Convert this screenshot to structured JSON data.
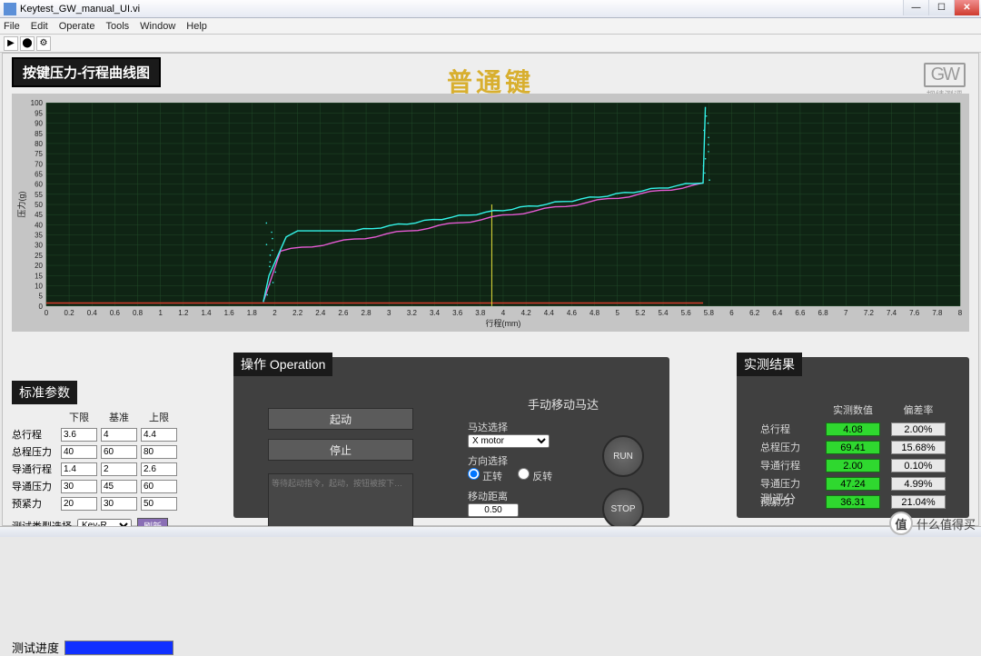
{
  "window": {
    "title": "Keytest_GW_manual_UI.vi"
  },
  "menu": {
    "items": [
      "File",
      "Edit",
      "Operate",
      "Tools",
      "Window",
      "Help"
    ]
  },
  "header": {
    "chart_title": "按键压力-行程曲线图",
    "center": "普通键",
    "logo_top": "GW",
    "logo_sub": "规纬测评"
  },
  "progress": {
    "label": "测试进度"
  },
  "std": {
    "title": "标准参数",
    "cols": [
      "下限",
      "基准",
      "上限"
    ],
    "rows": [
      {
        "label": "总行程",
        "lo": "3.6",
        "mid": "4",
        "hi": "4.4"
      },
      {
        "label": "总程压力",
        "lo": "40",
        "mid": "60",
        "hi": "80"
      },
      {
        "label": "导通行程",
        "lo": "1.4",
        "mid": "2",
        "hi": "2.6"
      },
      {
        "label": "导通压力",
        "lo": "30",
        "mid": "45",
        "hi": "60"
      },
      {
        "label": "预紧力",
        "lo": "20",
        "mid": "30",
        "hi": "50"
      }
    ],
    "type_label": "测试类型选择",
    "type_value": "Key-R",
    "type_btn": "刷新"
  },
  "op": {
    "title": "操作 Operation",
    "start": "起动",
    "stop": "停止",
    "log_hint": "等待起动指令，起动，按钮被按下…",
    "manual_title": "手动移动马达",
    "motor_label": "马达选择",
    "motor_value": "X motor",
    "dir_label": "方向选择",
    "dir_fwd": "正转",
    "dir_rev": "反转",
    "dist_label": "移动距离",
    "dist_value": "0.50",
    "run": "RUN",
    "stop_btn": "STOP"
  },
  "res": {
    "title": "实测结果",
    "col1": "实测数值",
    "col2": "偏差率",
    "rows": [
      {
        "label": "总行程",
        "v": "4.08",
        "d": "2.00%"
      },
      {
        "label": "总程压力",
        "v": "69.41",
        "d": "15.68%"
      },
      {
        "label": "导通行程",
        "v": "2.00",
        "d": "0.10%"
      },
      {
        "label": "导通压力",
        "v": "47.24",
        "d": "4.99%"
      },
      {
        "label": "预紧力",
        "v": "36.31",
        "d": "21.04%"
      }
    ],
    "score_label": "测评分"
  },
  "watermark": {
    "brand": "什么值得买",
    "icon": "值"
  },
  "chart": {
    "bg": "#0f2414",
    "grid": "#214a28",
    "xlabel": "行程(mm)",
    "ylabel": "压力(g)",
    "xlim": [
      0,
      8
    ],
    "xtick": 0.2,
    "ylim": [
      0,
      100
    ],
    "ytick": 5,
    "marker_x": 3.9,
    "series": {
      "press": {
        "color": "#34f3e8",
        "x0": 1.9,
        "y0": 2,
        "plateau_x": 2.2,
        "plateau_y": 37,
        "end_x": 5.75,
        "end_y": 61,
        "wall_y": 98
      },
      "release": {
        "color": "#e85bd6",
        "x0": 1.9,
        "y0": 2,
        "x1": 2.05,
        "y1": 27,
        "end_x": 5.75,
        "end_y": 60
      },
      "baseline": {
        "color": "#d43a2a",
        "y": 1.5,
        "x0": 0,
        "x1": 5.75
      }
    }
  }
}
